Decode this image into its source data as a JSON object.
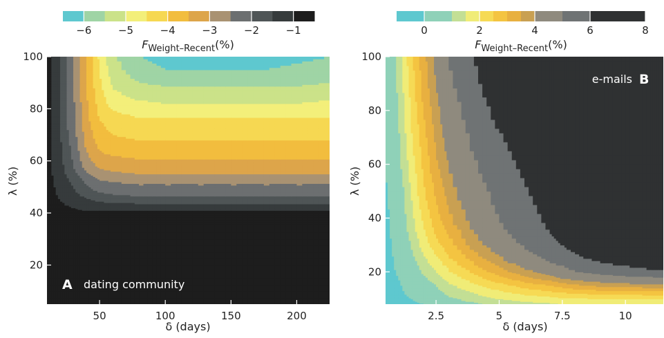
{
  "chart_data": [
    {
      "type": "heatmap",
      "panel_letter": "A",
      "panel_label": "dating community",
      "label_position": "bottom-left",
      "xlabel": "δ (days)",
      "ylabel": "λ (%)",
      "xlim": [
        10,
        225
      ],
      "ylim": [
        5,
        100
      ],
      "xticks": [
        50,
        100,
        150,
        200
      ],
      "yticks": [
        20,
        40,
        60,
        80,
        100
      ],
      "xtick_labels": [
        "50",
        "100",
        "150",
        "200"
      ],
      "ytick_labels": [
        "20",
        "40",
        "60",
        "80",
        "100"
      ],
      "colorbar": {
        "label_main": "F",
        "label_sub": "Weight–Recent",
        "label_unit": "(%)",
        "range": [
          -6.5,
          -0.5
        ],
        "ticks": [
          -6,
          -5,
          -4,
          -3,
          -2,
          -1
        ],
        "tick_labels": [
          "−6",
          "−5",
          "−4",
          "−3",
          "−2",
          "−1"
        ],
        "position": "top"
      },
      "contour_levels": [
        -6.5,
        -6,
        -5.5,
        -5,
        -4.5,
        -4,
        -3.5,
        -3,
        -2.5,
        -2,
        -1.5,
        -1,
        -0.5
      ],
      "level_colors": [
        "#5ec8cf",
        "#9fd4a5",
        "#cbe289",
        "#f3ef7a",
        "#f6d852",
        "#f2bd3e",
        "#dda54a",
        "#a99272",
        "#6c6f70",
        "#4f5556",
        "#363b3c",
        "#1d1d1d"
      ],
      "x": [
        10,
        20,
        30,
        40,
        50,
        60,
        80,
        100,
        125,
        150,
        175,
        200,
        225
      ],
      "y": [
        5,
        20,
        35,
        40,
        42,
        45,
        48,
        52,
        55,
        58,
        62,
        66,
        70,
        74,
        78,
        82,
        86,
        90,
        95,
        100
      ],
      "z": [
        [
          -0.6,
          -0.6,
          -0.6,
          -0.6,
          -0.6,
          -0.6,
          -0.6,
          -0.6,
          -0.6,
          -0.6,
          -0.6,
          -0.6,
          -0.6
        ],
        [
          -0.6,
          -0.6,
          -0.6,
          -0.6,
          -0.6,
          -0.6,
          -0.6,
          -0.6,
          -0.6,
          -0.6,
          -0.6,
          -0.6,
          -0.6
        ],
        [
          -0.7,
          -0.7,
          -0.7,
          -0.7,
          -0.7,
          -0.7,
          -0.7,
          -0.7,
          -0.7,
          -0.7,
          -0.7,
          -0.7,
          -0.7
        ],
        [
          -0.8,
          -0.8,
          -0.9,
          -0.9,
          -0.9,
          -0.9,
          -0.9,
          -0.9,
          -0.9,
          -0.9,
          -0.9,
          -0.9,
          -0.9
        ],
        [
          -0.8,
          -0.9,
          -1.0,
          -1.1,
          -1.1,
          -1.1,
          -1.1,
          -1.1,
          -1.1,
          -1.1,
          -1.1,
          -1.1,
          -1.1
        ],
        [
          -0.8,
          -1.0,
          -1.2,
          -1.4,
          -1.6,
          -1.7,
          -1.8,
          -1.8,
          -1.8,
          -1.8,
          -1.8,
          -1.8,
          -1.8
        ],
        [
          -0.8,
          -1.1,
          -1.4,
          -1.8,
          -2.0,
          -2.1,
          -2.2,
          -2.2,
          -2.2,
          -2.2,
          -2.2,
          -2.2,
          -2.2
        ],
        [
          -0.8,
          -1.2,
          -1.6,
          -2.1,
          -2.4,
          -2.5,
          -2.6,
          -2.6,
          -2.6,
          -2.6,
          -2.6,
          -2.6,
          -2.6
        ],
        [
          -0.8,
          -1.3,
          -1.8,
          -2.4,
          -2.8,
          -2.9,
          -3.0,
          -3.0,
          -3.0,
          -3.0,
          -3.0,
          -3.0,
          -3.0
        ],
        [
          -0.8,
          -1.3,
          -2.0,
          -2.7,
          -3.1,
          -3.2,
          -3.3,
          -3.3,
          -3.3,
          -3.3,
          -3.3,
          -3.3,
          -3.3
        ],
        [
          -0.8,
          -1.4,
          -2.1,
          -2.9,
          -3.4,
          -3.5,
          -3.6,
          -3.6,
          -3.6,
          -3.6,
          -3.6,
          -3.6,
          -3.6
        ],
        [
          -0.8,
          -1.4,
          -2.2,
          -3.1,
          -3.6,
          -3.8,
          -3.9,
          -3.9,
          -3.9,
          -3.9,
          -3.9,
          -3.9,
          -3.9
        ],
        [
          -0.8,
          -1.5,
          -2.3,
          -3.2,
          -3.8,
          -4.0,
          -4.1,
          -4.1,
          -4.1,
          -4.1,
          -4.1,
          -4.1,
          -4.1
        ],
        [
          -0.8,
          -1.5,
          -2.4,
          -3.3,
          -3.9,
          -4.2,
          -4.3,
          -4.3,
          -4.3,
          -4.3,
          -4.3,
          -4.3,
          -4.3
        ],
        [
          -0.8,
          -1.5,
          -2.4,
          -3.4,
          -4.1,
          -4.4,
          -4.6,
          -4.6,
          -4.6,
          -4.6,
          -4.6,
          -4.6,
          -4.6
        ],
        [
          -0.8,
          -1.5,
          -2.4,
          -3.4,
          -4.2,
          -4.7,
          -4.9,
          -5.0,
          -5.0,
          -5.0,
          -5.0,
          -5.0,
          -4.9
        ],
        [
          -0.8,
          -1.5,
          -2.5,
          -3.5,
          -4.3,
          -4.9,
          -5.2,
          -5.3,
          -5.3,
          -5.3,
          -5.3,
          -5.3,
          -5.2
        ],
        [
          -0.8,
          -1.5,
          -2.5,
          -3.5,
          -4.4,
          -5.1,
          -5.5,
          -5.6,
          -5.6,
          -5.6,
          -5.6,
          -5.6,
          -5.5
        ],
        [
          -0.8,
          -1.5,
          -2.5,
          -3.5,
          -4.5,
          -5.3,
          -5.8,
          -6.0,
          -6.0,
          -6.0,
          -6.0,
          -5.9,
          -5.8
        ],
        [
          -0.8,
          -1.5,
          -2.5,
          -3.5,
          -4.6,
          -5.4,
          -6.0,
          -6.2,
          -6.2,
          -6.2,
          -6.2,
          -6.1,
          -6.0
        ]
      ]
    },
    {
      "type": "heatmap",
      "panel_letter": "B",
      "panel_label": "e-mails",
      "label_position": "top-right",
      "xlabel": "δ (days)",
      "ylabel": "λ (%)",
      "xlim": [
        0.5,
        11.5
      ],
      "ylim": [
        8,
        100
      ],
      "xticks": [
        2.5,
        5,
        7.5,
        10
      ],
      "yticks": [
        20,
        40,
        60,
        80,
        100
      ],
      "xtick_labels": [
        "2.5",
        "5",
        "7.5",
        "10"
      ],
      "ytick_labels": [
        "20",
        "40",
        "60",
        "80",
        "100"
      ],
      "colorbar": {
        "label_main": "F",
        "label_sub": "Weight–Recent",
        "label_unit": "(%)",
        "range": [
          -1,
          8
        ],
        "ticks": [
          0,
          2,
          4,
          6,
          8
        ],
        "tick_labels": [
          "0",
          "2",
          "4",
          "6",
          "8"
        ],
        "position": "top"
      },
      "contour_levels": [
        -1,
        0,
        1,
        1.5,
        2,
        2.5,
        3,
        3.5,
        4,
        5,
        6,
        7,
        8
      ],
      "level_colors": [
        "#5ec8cf",
        "#8fd1b8",
        "#c3df95",
        "#f0ec77",
        "#f6da55",
        "#f4c441",
        "#e8b040",
        "#c9a052",
        "#8f8a7e",
        "#6f7374",
        "#2f3132",
        "#2f3132"
      ],
      "x": [
        0.5,
        1,
        1.5,
        2,
        2.5,
        3,
        4,
        5,
        6,
        7,
        7.5,
        8,
        9,
        10,
        11,
        11.5
      ],
      "y": [
        8,
        10,
        12,
        15,
        18,
        20,
        25,
        30,
        35,
        40,
        50,
        60,
        70,
        80,
        90,
        100
      ],
      "z": [
        [
          -0.5,
          -0.5,
          -0.3,
          0.0,
          0.3,
          0.6,
          0.9,
          1.1,
          1.3,
          1.4,
          1.5,
          1.5,
          1.6,
          1.6,
          1.6,
          1.6
        ],
        [
          -0.5,
          -0.3,
          0.0,
          0.3,
          0.6,
          0.9,
          1.2,
          1.5,
          1.7,
          1.8,
          1.9,
          1.9,
          2.0,
          2.0,
          2.0,
          2.0
        ],
        [
          -0.5,
          -0.2,
          0.2,
          0.5,
          0.8,
          1.1,
          1.5,
          1.8,
          2.1,
          2.3,
          2.4,
          2.5,
          2.6,
          2.6,
          2.7,
          2.7
        ],
        [
          -0.4,
          -0.1,
          0.3,
          0.7,
          1.0,
          1.4,
          1.9,
          2.3,
          2.7,
          3.0,
          3.2,
          3.4,
          3.6,
          3.7,
          3.8,
          3.8
        ],
        [
          -0.4,
          0.0,
          0.5,
          0.9,
          1.3,
          1.7,
          2.3,
          2.9,
          3.4,
          3.8,
          4.1,
          4.3,
          4.6,
          4.8,
          4.9,
          5.0
        ],
        [
          -0.4,
          0.1,
          0.6,
          1.1,
          1.5,
          1.9,
          2.6,
          3.2,
          3.8,
          4.3,
          4.6,
          4.9,
          5.3,
          5.6,
          5.8,
          5.9
        ],
        [
          -0.3,
          0.2,
          0.8,
          1.4,
          1.9,
          2.4,
          3.2,
          3.9,
          4.6,
          5.2,
          5.5,
          5.8,
          6.2,
          6.5,
          6.7,
          6.8
        ],
        [
          -0.3,
          0.3,
          1.0,
          1.7,
          2.3,
          2.8,
          3.7,
          4.4,
          5.1,
          5.7,
          6.0,
          6.3,
          6.7,
          7.0,
          7.2,
          7.3
        ],
        [
          -0.2,
          0.4,
          1.2,
          1.9,
          2.6,
          3.1,
          4.0,
          4.8,
          5.4,
          6.0,
          6.3,
          6.6,
          7.0,
          7.3,
          7.5,
          7.6
        ],
        [
          -0.2,
          0.5,
          1.3,
          2.1,
          2.8,
          3.4,
          4.3,
          5.0,
          5.6,
          6.2,
          6.5,
          6.8,
          7.2,
          7.5,
          7.7,
          7.8
        ],
        [
          -0.1,
          0.6,
          1.5,
          2.4,
          3.1,
          3.7,
          4.6,
          5.3,
          5.9,
          6.5,
          6.8,
          7.1,
          7.5,
          7.8,
          7.9,
          8.0
        ],
        [
          0.0,
          0.8,
          1.7,
          2.6,
          3.4,
          4.0,
          4.9,
          5.6,
          6.2,
          6.8,
          7.1,
          7.4,
          7.8,
          8.0,
          8.1,
          8.2
        ],
        [
          0.1,
          0.9,
          1.9,
          2.8,
          3.6,
          4.3,
          5.2,
          5.9,
          6.6,
          7.1,
          7.4,
          7.7,
          8.0,
          8.2,
          8.3,
          8.3
        ],
        [
          0.2,
          1.0,
          2.0,
          3.0,
          3.8,
          4.5,
          5.5,
          6.3,
          7.0,
          7.5,
          7.8,
          8.0,
          8.2,
          8.4,
          8.4,
          8.5
        ],
        [
          0.2,
          1.1,
          2.2,
          3.2,
          4.0,
          4.8,
          5.8,
          6.6,
          7.3,
          7.8,
          8.0,
          8.2,
          8.4,
          8.5,
          8.6,
          8.6
        ],
        [
          0.3,
          1.2,
          2.3,
          3.3,
          4.2,
          5.0,
          6.0,
          6.9,
          7.5,
          8.0,
          8.2,
          8.4,
          8.6,
          8.7,
          8.7,
          8.8
        ]
      ]
    }
  ]
}
